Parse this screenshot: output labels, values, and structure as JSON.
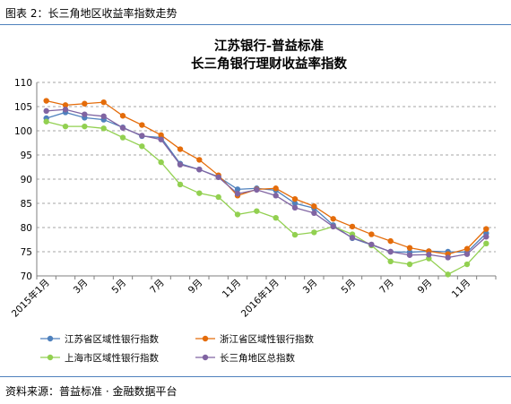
{
  "figure_label": "图表 2：长三角地区收益率指数走势",
  "source_note": "资料来源：普益标准 · 金融数据平台",
  "chart_data": {
    "type": "line",
    "title_lines": [
      "江苏银行-普益标准",
      "长三角银行理财收益率指数"
    ],
    "xlabel": "",
    "ylabel": "",
    "ylim": [
      70,
      110
    ],
    "yticks": [
      70,
      75,
      80,
      85,
      90,
      95,
      100,
      105,
      110
    ],
    "grid": true,
    "legend_position": "bottom",
    "x_tick_labels": [
      {
        "index": 0,
        "label": "2015年1月"
      },
      {
        "index": 2,
        "label": "3月"
      },
      {
        "index": 4,
        "label": "5月"
      },
      {
        "index": 6,
        "label": "7月"
      },
      {
        "index": 8,
        "label": "9月"
      },
      {
        "index": 10,
        "label": "11月"
      },
      {
        "index": 12,
        "label": "2016年1月"
      },
      {
        "index": 14,
        "label": "3月"
      },
      {
        "index": 16,
        "label": "5月"
      },
      {
        "index": 18,
        "label": "7月"
      },
      {
        "index": 20,
        "label": "9月"
      },
      {
        "index": 22,
        "label": "11月"
      }
    ],
    "series": [
      {
        "name": "江苏省区域性银行指数",
        "color": "#4f81bd",
        "values": [
          102.6,
          103.8,
          102.7,
          102.3,
          100.7,
          98.9,
          98.6,
          93.2,
          92.0,
          90.5,
          87.9,
          88.1,
          87.7,
          85.0,
          84.0,
          80.5,
          77.8,
          76.4,
          75.0,
          74.9,
          75.1,
          75.0,
          74.9,
          78.8
        ]
      },
      {
        "name": "浙江省区域性银行指数",
        "color": "#e46c0a",
        "values": [
          106.2,
          105.3,
          105.6,
          105.9,
          103.1,
          101.2,
          99.1,
          96.2,
          94.0,
          90.8,
          86.6,
          87.9,
          88.1,
          85.9,
          84.4,
          81.8,
          80.2,
          78.6,
          77.2,
          75.8,
          75.1,
          74.5,
          75.6,
          79.7
        ]
      },
      {
        "name": "上海市区域性银行指数",
        "color": "#92d050",
        "values": [
          101.9,
          100.9,
          100.9,
          100.5,
          98.6,
          96.8,
          93.5,
          88.9,
          87.1,
          86.3,
          82.7,
          83.4,
          82.0,
          78.5,
          79.0,
          80.2,
          78.6,
          76.3,
          73.0,
          72.4,
          73.6,
          70.3,
          72.4,
          76.7
        ]
      },
      {
        "name": "长三角地区总指数",
        "color": "#8064a2",
        "values": [
          104.1,
          104.4,
          103.4,
          103.0,
          100.6,
          99.0,
          98.2,
          93.0,
          92.0,
          90.4,
          87.0,
          87.8,
          86.6,
          84.1,
          83.0,
          80.2,
          77.9,
          76.5,
          75.0,
          74.3,
          74.4,
          73.8,
          74.5,
          78.1
        ]
      }
    ]
  }
}
